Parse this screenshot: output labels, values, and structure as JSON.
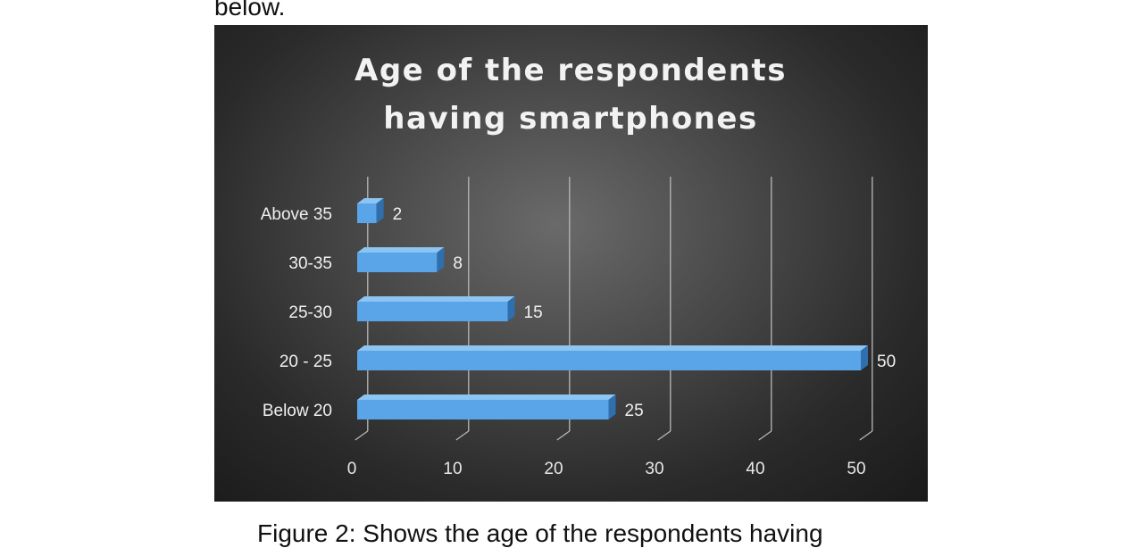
{
  "page": {
    "top_text": "below.",
    "caption": "Figure 2: Shows the age of the respondents having"
  },
  "chart_data": {
    "type": "bar",
    "orientation": "horizontal",
    "title_lines": [
      "Age of the respondents",
      "having smartphones"
    ],
    "categories": [
      "Below 20",
      "20 - 25",
      "25-30",
      "30-35",
      "Above 35"
    ],
    "values": [
      25,
      50,
      15,
      8,
      2
    ],
    "data_labels": [
      "25",
      "50",
      "15",
      "8",
      "2"
    ],
    "xlim": [
      0,
      50
    ],
    "x_ticks": [
      0,
      10,
      20,
      30,
      40,
      50
    ],
    "x_tick_labels": [
      "0",
      "10",
      "20",
      "30",
      "40",
      "50"
    ],
    "grid": true,
    "legend": "none",
    "colors": {
      "bar_front": "#5aa5e8",
      "bar_top": "#8cc4f2",
      "bar_side": "#2f6fae",
      "grid": "#b8b8b8"
    }
  }
}
